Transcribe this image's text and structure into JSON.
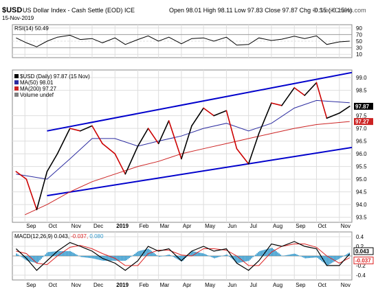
{
  "header": {
    "ticker": "$USD",
    "description": "US Dollar Index - Cash Settle (EOD) ICE",
    "date": "15-Nov-2019",
    "open_label": "Open",
    "open": "98.01",
    "high_label": "High",
    "high": "98.11",
    "low_label": "Low",
    "low": "97.83",
    "close_label": "Close",
    "close": "97.87",
    "chg_label": "Chg",
    "chg": "-0.15 (-0.15%)",
    "source": "© StockCharts.com"
  },
  "rsi_panel": {
    "label": "RSI(14) 50.49",
    "ticks": [
      "90",
      "70",
      "50",
      "30",
      "10"
    ],
    "current": "50.49"
  },
  "price_panel": {
    "legend": [
      {
        "text": "$USD (Daily) 97.87 (15 Nov)",
        "color": "#000000"
      },
      {
        "text": "MA(50) 98.01",
        "color": "#2b2ba0"
      },
      {
        "text": "MA(200) 97.27",
        "color": "#cc2222"
      },
      {
        "text": "Volume undef",
        "color": "#808080"
      }
    ],
    "ticks": [
      "99.0",
      "98.5",
      "97.5",
      "97.0",
      "96.5",
      "96.0",
      "95.5",
      "95.0",
      "94.5",
      "94.0",
      "93.5"
    ],
    "badges": [
      "97.87",
      "97.27"
    ]
  },
  "macd_panel": {
    "label_main": "MACD(12,26,9)",
    "label_macd": "0.043",
    "label_signal": "-0.037",
    "label_hist": "0.080",
    "ticks": [
      "0.4",
      "0.2",
      "-0.2",
      "-0.4"
    ],
    "badges": [
      "0.043",
      "-0.037"
    ]
  },
  "x_axis": {
    "labels": [
      "Sep",
      "Oct",
      "Nov",
      "Dec",
      "2019",
      "Feb",
      "Mar",
      "Apr",
      "May",
      "Jun",
      "Jul",
      "Aug",
      "Sep",
      "Oct",
      "Nov"
    ]
  },
  "colors": {
    "price": "#000000",
    "price_down": "#cc0000",
    "ma50": "#2b2ba0",
    "ma200": "#cc2222",
    "channel": "#0000cc",
    "macd": "#000000",
    "signal": "#dd2222",
    "histogram": "#3399cc",
    "grid": "#dddddd"
  },
  "chart_data": [
    {
      "type": "line",
      "title": "RSI(14)",
      "ylim": [
        0,
        100
      ],
      "reference_lines": [
        70,
        30
      ],
      "series": [
        {
          "name": "RSI(14)",
          "x": [
            "2018-08-20",
            "2018-09-03",
            "2018-09-17",
            "2018-10-01",
            "2018-10-15",
            "2018-11-01",
            "2018-11-15",
            "2018-12-01",
            "2018-12-15",
            "2019-01-01",
            "2019-01-15",
            "2019-02-01",
            "2019-02-15",
            "2019-03-01",
            "2019-03-15",
            "2019-04-01",
            "2019-04-15",
            "2019-05-01",
            "2019-05-15",
            "2019-06-01",
            "2019-06-15",
            "2019-07-01",
            "2019-07-15",
            "2019-08-01",
            "2019-08-15",
            "2019-09-01",
            "2019-09-15",
            "2019-10-01",
            "2019-10-15",
            "2019-11-01",
            "2019-11-15"
          ],
          "values": [
            60,
            45,
            33,
            50,
            62,
            68,
            55,
            58,
            45,
            60,
            40,
            55,
            66,
            50,
            62,
            42,
            58,
            60,
            50,
            62,
            38,
            40,
            60,
            52,
            56,
            65,
            58,
            66,
            40,
            48,
            50
          ]
        }
      ]
    },
    {
      "type": "line",
      "title": "$USD (Daily) 97.87 (15 Nov)",
      "ylim": [
        93.3,
        99.3
      ],
      "grid": true,
      "series": [
        {
          "name": "$USD (Daily) 97.87 (15 Nov)",
          "x": [
            "2018-08-20",
            "2018-09-03",
            "2018-09-17",
            "2018-10-01",
            "2018-10-15",
            "2018-11-01",
            "2018-11-15",
            "2018-12-01",
            "2018-12-15",
            "2019-01-01",
            "2019-01-15",
            "2019-02-01",
            "2019-02-15",
            "2019-03-01",
            "2019-03-15",
            "2019-04-01",
            "2019-04-15",
            "2019-05-01",
            "2019-05-15",
            "2019-06-01",
            "2019-06-15",
            "2019-07-01",
            "2019-07-15",
            "2019-08-01",
            "2019-08-15",
            "2019-09-01",
            "2019-09-15",
            "2019-10-01",
            "2019-10-15",
            "2019-11-01",
            "2019-11-15"
          ],
          "values": [
            95.3,
            95.0,
            93.8,
            95.3,
            96.0,
            97.0,
            96.9,
            97.1,
            96.4,
            96.0,
            95.2,
            96.3,
            97.0,
            96.4,
            97.3,
            95.8,
            97.1,
            97.8,
            97.5,
            97.7,
            96.2,
            95.6,
            96.8,
            98.0,
            97.9,
            98.6,
            98.3,
            98.8,
            97.4,
            97.6,
            97.87
          ]
        },
        {
          "name": "MA(50) 98.01",
          "x": [
            "2018-08-20",
            "2018-10-01",
            "2018-11-01",
            "2018-12-01",
            "2019-01-01",
            "2019-02-01",
            "2019-03-01",
            "2019-04-01",
            "2019-05-01",
            "2019-06-01",
            "2019-07-01",
            "2019-08-01",
            "2019-09-01",
            "2019-10-01",
            "2019-11-15"
          ],
          "values": [
            95.2,
            95.0,
            95.8,
            96.6,
            96.6,
            96.3,
            96.5,
            96.7,
            97.0,
            97.2,
            96.9,
            97.2,
            97.8,
            98.1,
            98.01
          ]
        },
        {
          "name": "MA(200) 97.27",
          "x": [
            "2018-09-01",
            "2018-10-01",
            "2018-11-01",
            "2018-12-01",
            "2019-01-01",
            "2019-02-01",
            "2019-03-01",
            "2019-04-01",
            "2019-05-01",
            "2019-06-01",
            "2019-07-01",
            "2019-08-01",
            "2019-09-01",
            "2019-10-01",
            "2019-11-15"
          ],
          "values": [
            93.6,
            94.0,
            94.5,
            94.9,
            95.2,
            95.5,
            95.7,
            96.0,
            96.2,
            96.4,
            96.6,
            96.8,
            97.0,
            97.15,
            97.27
          ]
        }
      ]
    },
    {
      "type": "line",
      "title": "MACD(12,26,9) 0.043, -0.037, 0.080",
      "ylim": [
        -0.5,
        0.5
      ],
      "series": [
        {
          "name": "MACD",
          "x": [
            "2018-08-20",
            "2018-09-03",
            "2018-09-17",
            "2018-10-01",
            "2018-10-15",
            "2018-11-01",
            "2018-11-15",
            "2018-12-01",
            "2018-12-15",
            "2019-01-01",
            "2019-01-15",
            "2019-02-01",
            "2019-02-15",
            "2019-03-01",
            "2019-03-15",
            "2019-04-01",
            "2019-04-15",
            "2019-05-01",
            "2019-05-15",
            "2019-06-01",
            "2019-06-15",
            "2019-07-01",
            "2019-07-15",
            "2019-08-01",
            "2019-08-15",
            "2019-09-01",
            "2019-09-15",
            "2019-10-01",
            "2019-10-15",
            "2019-11-01",
            "2019-11-15"
          ],
          "values": [
            0.15,
            -0.05,
            -0.3,
            -0.1,
            0.1,
            0.28,
            0.2,
            0.1,
            -0.05,
            -0.15,
            -0.3,
            -0.1,
            0.2,
            0.1,
            0.15,
            -0.1,
            0.1,
            0.2,
            0.1,
            0.15,
            -0.15,
            -0.3,
            -0.1,
            0.25,
            0.2,
            0.3,
            0.2,
            0.15,
            -0.2,
            -0.2,
            0.043
          ]
        },
        {
          "name": "Signal",
          "x": [
            "2018-08-20",
            "2018-09-03",
            "2018-09-17",
            "2018-10-01",
            "2018-10-15",
            "2018-11-01",
            "2018-11-15",
            "2018-12-01",
            "2018-12-15",
            "2019-01-01",
            "2019-01-15",
            "2019-02-01",
            "2019-02-15",
            "2019-03-01",
            "2019-03-15",
            "2019-04-01",
            "2019-04-15",
            "2019-05-01",
            "2019-05-15",
            "2019-06-01",
            "2019-06-15",
            "2019-07-01",
            "2019-07-15",
            "2019-08-01",
            "2019-08-15",
            "2019-09-01",
            "2019-09-15",
            "2019-10-01",
            "2019-10-15",
            "2019-11-01",
            "2019-11-15"
          ],
          "values": [
            0.1,
            0.05,
            -0.15,
            -0.18,
            0.0,
            0.18,
            0.22,
            0.15,
            0.05,
            -0.05,
            -0.2,
            -0.2,
            0.05,
            0.12,
            0.12,
            0.02,
            0.0,
            0.15,
            0.15,
            0.12,
            0.0,
            -0.2,
            -0.2,
            0.08,
            0.2,
            0.25,
            0.25,
            0.18,
            0.0,
            -0.15,
            -0.037
          ]
        }
      ]
    }
  ]
}
